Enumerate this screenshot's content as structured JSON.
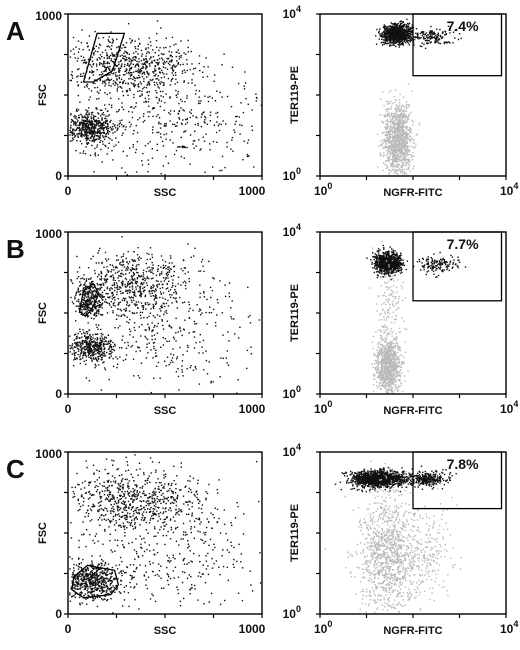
{
  "figure": {
    "panels": [
      {
        "label": "A"
      },
      {
        "label": "B"
      },
      {
        "label": "C"
      }
    ]
  },
  "colors": {
    "events_dark": "#111111",
    "events_light": "#b9b9b9",
    "axis": "#000000"
  },
  "chart_data": [
    {
      "type": "scatter",
      "panel": "A",
      "plot": "FSC vs SSC",
      "xlabel": "SSC",
      "ylabel": "FSC",
      "xlim": [
        0,
        1000
      ],
      "ylim": [
        0,
        1000
      ],
      "x_tick_labels": [
        "0",
        "1000"
      ],
      "y_tick_labels": [
        "0",
        "1000"
      ],
      "gate_polygon": [
        [
          80,
          580
        ],
        [
          150,
          880
        ],
        [
          290,
          880
        ],
        [
          230,
          650
        ],
        [
          130,
          580
        ]
      ],
      "populations": [
        {
          "cx": 110,
          "cy": 300,
          "sx": 60,
          "sy": 50,
          "n": 520
        },
        {
          "cx": 300,
          "cy": 680,
          "sx": 170,
          "sy": 90,
          "n": 700
        },
        {
          "cx": 520,
          "cy": 350,
          "sx": 260,
          "sy": 170,
          "n": 420
        }
      ]
    },
    {
      "type": "scatter",
      "panel": "A",
      "plot": "TER119-PE vs NGFR-FITC",
      "xlabel": "NGFR-FITC",
      "ylabel": "TER119-PE",
      "scale": "log",
      "xlim": [
        1,
        10000
      ],
      "ylim": [
        1,
        10000
      ],
      "x_tick_labels": [
        "10",
        "10"
      ],
      "x_tick_exponents": [
        "0",
        "4"
      ],
      "y_tick_labels": [
        "10",
        "10"
      ],
      "y_tick_exponents": [
        "0",
        "4"
      ],
      "annotation": "7.4%",
      "gate_box": {
        "x0": 100,
        "x1": 8000,
        "y0": 300,
        "y1": 10000
      },
      "populations": [
        {
          "color": "dark",
          "lx": 1.65,
          "ly": 3.52,
          "sx": 0.16,
          "sy": 0.11,
          "n": 1000
        },
        {
          "color": "dark",
          "lx": 2.45,
          "ly": 3.45,
          "sx": 0.22,
          "sy": 0.1,
          "n": 140
        },
        {
          "color": "light",
          "lx": 1.65,
          "ly": 0.9,
          "sx": 0.15,
          "sy": 0.45,
          "n": 1100
        }
      ]
    },
    {
      "type": "scatter",
      "panel": "B",
      "plot": "FSC vs SSC",
      "xlabel": "SSC",
      "ylabel": "FSC",
      "xlim": [
        0,
        1000
      ],
      "ylim": [
        0,
        1000
      ],
      "x_tick_labels": [
        "0",
        "1000"
      ],
      "y_tick_labels": [
        "0",
        "1000"
      ],
      "gate_polygon": [
        [
          60,
          510
        ],
        [
          80,
          640
        ],
        [
          130,
          680
        ],
        [
          160,
          620
        ],
        [
          120,
          520
        ],
        [
          90,
          480
        ]
      ],
      "populations": [
        {
          "cx": 110,
          "cy": 570,
          "sx": 35,
          "sy": 55,
          "n": 260
        },
        {
          "cx": 110,
          "cy": 290,
          "sx": 60,
          "sy": 45,
          "n": 420
        },
        {
          "cx": 330,
          "cy": 680,
          "sx": 170,
          "sy": 100,
          "n": 680
        },
        {
          "cx": 480,
          "cy": 360,
          "sx": 240,
          "sy": 160,
          "n": 320
        }
      ]
    },
    {
      "type": "scatter",
      "panel": "B",
      "plot": "TER119-PE vs NGFR-FITC",
      "xlabel": "NGFR-FITC",
      "ylabel": "TER119-PE",
      "scale": "log",
      "xlim": [
        1,
        10000
      ],
      "ylim": [
        1,
        10000
      ],
      "x_tick_labels": [
        "10",
        "10"
      ],
      "x_tick_exponents": [
        "0",
        "4"
      ],
      "y_tick_labels": [
        "10",
        "10"
      ],
      "y_tick_exponents": [
        "0",
        "4"
      ],
      "annotation": "7.7%",
      "gate_box": {
        "x0": 100,
        "x1": 8000,
        "y0": 200,
        "y1": 10000
      },
      "populations": [
        {
          "color": "dark",
          "lx": 1.45,
          "ly": 3.25,
          "sx": 0.14,
          "sy": 0.13,
          "n": 900
        },
        {
          "color": "dark",
          "lx": 2.5,
          "ly": 3.22,
          "sx": 0.22,
          "sy": 0.1,
          "n": 140
        },
        {
          "color": "light",
          "lx": 1.45,
          "ly": 0.7,
          "sx": 0.13,
          "sy": 0.35,
          "n": 900
        },
        {
          "color": "light",
          "lx": 1.5,
          "ly": 2.0,
          "sx": 0.15,
          "sy": 0.6,
          "n": 160
        }
      ]
    },
    {
      "type": "scatter",
      "panel": "C",
      "plot": "FSC vs SSC",
      "xlabel": "SSC",
      "ylabel": "FSC",
      "xlim": [
        0,
        1000
      ],
      "ylim": [
        0,
        1000
      ],
      "x_tick_labels": [
        "0",
        "1000"
      ],
      "y_tick_labels": [
        "0",
        "1000"
      ],
      "gate_polygon": [
        [
          20,
          150
        ],
        [
          30,
          230
        ],
        [
          100,
          300
        ],
        [
          240,
          270
        ],
        [
          260,
          180
        ],
        [
          220,
          120
        ],
        [
          80,
          100
        ]
      ],
      "populations": [
        {
          "cx": 120,
          "cy": 210,
          "sx": 70,
          "sy": 55,
          "n": 560
        },
        {
          "cx": 330,
          "cy": 700,
          "sx": 180,
          "sy": 100,
          "n": 700
        },
        {
          "cx": 500,
          "cy": 380,
          "sx": 250,
          "sy": 170,
          "n": 330
        }
      ]
    },
    {
      "type": "scatter",
      "panel": "C",
      "plot": "TER119-PE vs NGFR-FITC",
      "xlabel": "NGFR-FITC",
      "ylabel": "TER119-PE",
      "scale": "log",
      "xlim": [
        1,
        10000
      ],
      "ylim": [
        1,
        10000
      ],
      "x_tick_labels": [
        "10",
        "10"
      ],
      "x_tick_exponents": [
        "0",
        "4"
      ],
      "y_tick_labels": [
        "10",
        "10"
      ],
      "y_tick_exponents": [
        "0",
        "4"
      ],
      "annotation": "7.8%",
      "gate_box": {
        "x0": 100,
        "x1": 8000,
        "y0": 400,
        "y1": 10000
      },
      "populations": [
        {
          "color": "dark",
          "lx": 1.25,
          "ly": 3.35,
          "sx": 0.28,
          "sy": 0.1,
          "n": 1300
        },
        {
          "color": "dark",
          "lx": 2.3,
          "ly": 3.35,
          "sx": 0.22,
          "sy": 0.09,
          "n": 300
        },
        {
          "color": "light",
          "lx": 1.45,
          "ly": 1.5,
          "sx": 0.3,
          "sy": 0.75,
          "n": 1100
        },
        {
          "color": "light",
          "lx": 2.3,
          "ly": 1.6,
          "sx": 0.3,
          "sy": 0.55,
          "n": 200
        }
      ]
    }
  ]
}
